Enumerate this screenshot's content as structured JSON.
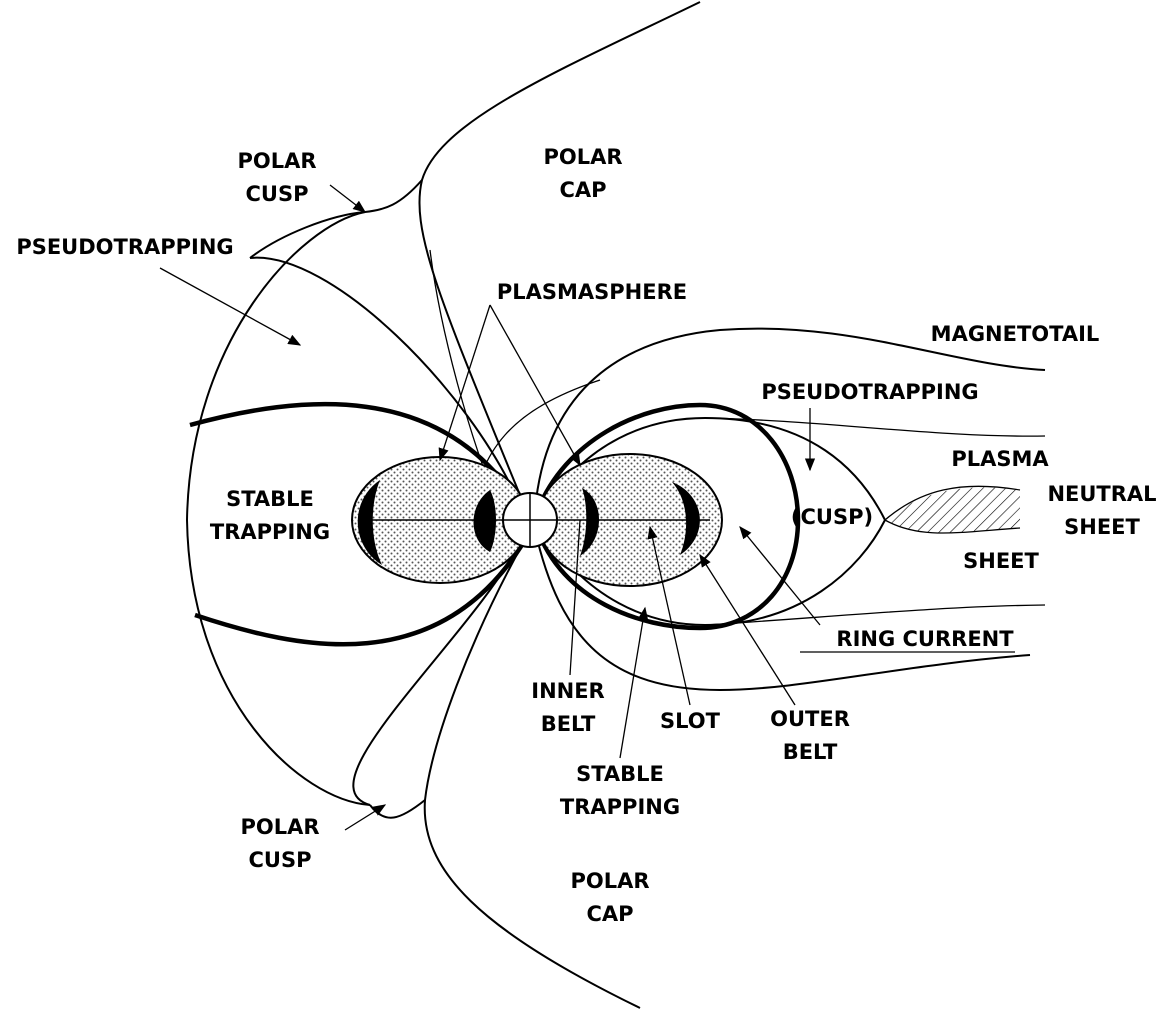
{
  "labels": [
    {
      "lines": [
        "POLAR",
        "CUSP"
      ]
    },
    {
      "lines": [
        "POLAR",
        "CAP"
      ]
    },
    {
      "lines": [
        "PSEUDOTRAPPING"
      ]
    },
    {
      "lines": [
        "PLASMASPHERE"
      ]
    },
    {
      "lines": [
        "MAGNETOTAIL"
      ]
    },
    {
      "lines": [
        "PSEUDOTRAPPING"
      ]
    },
    {
      "lines": [
        "PLASMA"
      ]
    },
    {
      "lines": [
        "NEUTRAL",
        "SHEET"
      ]
    },
    {
      "lines": [
        "STABLE",
        "TRAPPING"
      ]
    },
    {
      "lines": [
        "(CUSP)"
      ]
    },
    {
      "lines": [
        "SHEET"
      ]
    },
    {
      "lines": [
        "RING CURRENT"
      ]
    },
    {
      "lines": [
        "INNER",
        "BELT"
      ]
    },
    {
      "lines": [
        "SLOT"
      ]
    },
    {
      "lines": [
        "OUTER",
        "BELT"
      ]
    },
    {
      "lines": [
        "STABLE",
        "TRAPPING"
      ]
    },
    {
      "lines": [
        "POLAR",
        "CUSP"
      ]
    },
    {
      "lines": [
        "POLAR",
        "CAP"
      ]
    }
  ]
}
